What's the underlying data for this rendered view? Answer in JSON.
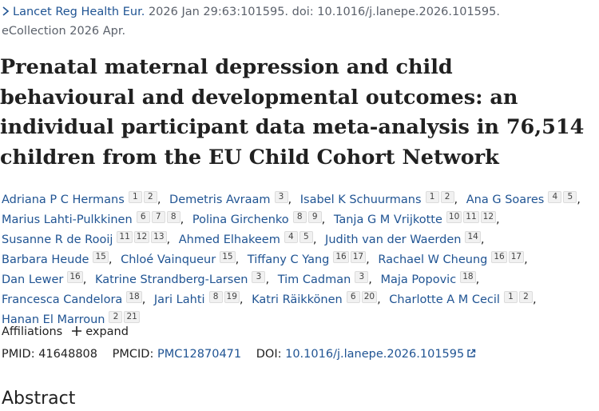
{
  "citation": {
    "journal": "Lancet Reg Health Eur.",
    "details": "2026 Jan 29:63:101595. doi: 10.1016/j.lanepe.2026.101595.",
    "ecollection": "eCollection 2026 Apr."
  },
  "title": "Prenatal maternal depression and child behavioural and developmental outcomes: an individual participant data meta-analysis in 76,514 children from the EU Child Cohort Network",
  "author_separator": ",",
  "authors": [
    {
      "name": "Adriana P C Hermans",
      "affiliations": [
        "1",
        "2"
      ]
    },
    {
      "name": "Demetris Avraam",
      "affiliations": [
        "3"
      ]
    },
    {
      "name": "Isabel K Schuurmans",
      "affiliations": [
        "1",
        "2"
      ]
    },
    {
      "name": "Ana G Soares",
      "affiliations": [
        "4",
        "5"
      ]
    },
    {
      "name": "Marius Lahti-Pulkkinen",
      "affiliations": [
        "6",
        "7",
        "8"
      ]
    },
    {
      "name": "Polina Girchenko",
      "affiliations": [
        "8",
        "9"
      ]
    },
    {
      "name": "Tanja G M Vrijkotte",
      "affiliations": [
        "10",
        "11",
        "12"
      ]
    },
    {
      "name": "Susanne R de Rooij",
      "affiliations": [
        "11",
        "12",
        "13"
      ]
    },
    {
      "name": "Ahmed Elhakeem",
      "affiliations": [
        "4",
        "5"
      ]
    },
    {
      "name": "Judith van der Waerden",
      "affiliations": [
        "14"
      ]
    },
    {
      "name": "Barbara Heude",
      "affiliations": [
        "15"
      ]
    },
    {
      "name": "Chloé Vainqueur",
      "affiliations": [
        "15"
      ]
    },
    {
      "name": "Tiffany C Yang",
      "affiliations": [
        "16",
        "17"
      ]
    },
    {
      "name": "Rachael W Cheung",
      "affiliations": [
        "16",
        "17"
      ]
    },
    {
      "name": "Dan Lewer",
      "affiliations": [
        "16"
      ]
    },
    {
      "name": "Katrine Strandberg-Larsen",
      "affiliations": [
        "3"
      ]
    },
    {
      "name": "Tim Cadman",
      "affiliations": [
        "3"
      ]
    },
    {
      "name": "Maja Popovic",
      "affiliations": [
        "18"
      ]
    },
    {
      "name": "Francesca Candelora",
      "affiliations": [
        "18"
      ]
    },
    {
      "name": "Jari Lahti",
      "affiliations": [
        "8",
        "19"
      ]
    },
    {
      "name": "Katri Räikkönen",
      "affiliations": [
        "6",
        "20"
      ]
    },
    {
      "name": "Charlotte A M Cecil",
      "affiliations": [
        "1",
        "2"
      ]
    },
    {
      "name": "Hanan El Marroun",
      "affiliations": [
        "2",
        "21"
      ]
    }
  ],
  "affiliations_toggle": {
    "label": "Affiliations",
    "action": "expand"
  },
  "identifiers": {
    "pmid_label": "PMID:",
    "pmid": "41648808",
    "pmcid_label": "PMCID:",
    "pmcid": "PMC12870471",
    "doi_label": "DOI:",
    "doi": "10.1016/j.lanepe.2026.101595"
  },
  "next_heading": "Abstract"
}
